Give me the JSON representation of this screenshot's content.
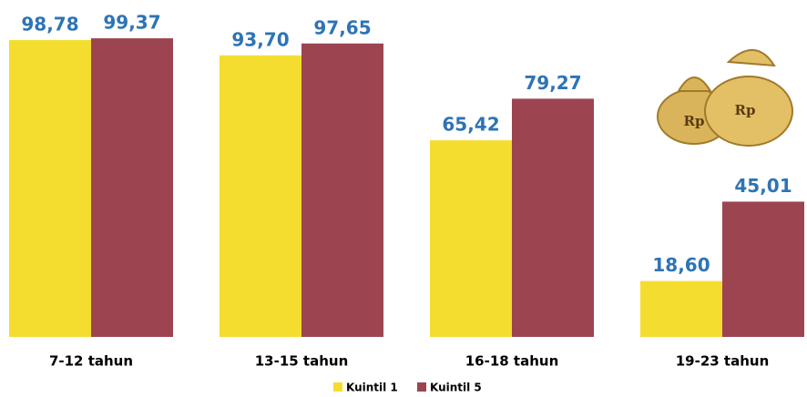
{
  "chart_data": {
    "type": "bar",
    "categories": [
      "7-12 tahun",
      "13-15 tahun",
      "16-18 tahun",
      "19-23 tahun"
    ],
    "series": [
      {
        "name": "Kuintil 1",
        "color": "#f5dd2f",
        "values": [
          98.78,
          93.7,
          65.42,
          18.6
        ],
        "value_labels": [
          "98,78",
          "93,70",
          "65,42",
          "18,60"
        ]
      },
      {
        "name": "Kuintil 5",
        "color": "#9c4450",
        "values": [
          99.37,
          97.65,
          79.27,
          45.01
        ],
        "value_labels": [
          "99,37",
          "97,65",
          "79,27",
          "45,01"
        ]
      }
    ],
    "ylim": [
      0,
      100
    ],
    "value_label_color": "#2e74b5"
  },
  "icon": {
    "label": "Rp"
  }
}
